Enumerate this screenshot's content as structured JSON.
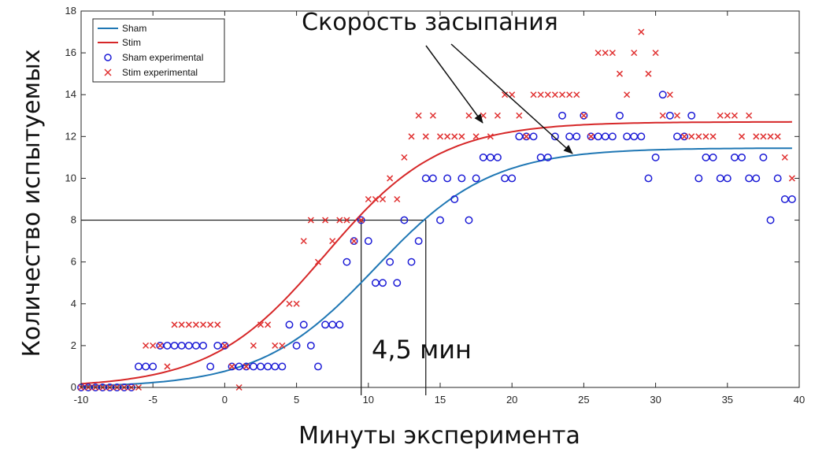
{
  "chart_data": {
    "type": "line",
    "xlabel": "Минуты эксперимента",
    "ylabel": "Количество испытуемых",
    "xlim": [
      -10,
      40
    ],
    "ylim": [
      0,
      18
    ],
    "xticks": [
      -10,
      -5,
      0,
      5,
      10,
      15,
      20,
      25,
      30,
      35,
      40
    ],
    "yticks": [
      0,
      2,
      4,
      6,
      8,
      10,
      12,
      14,
      16,
      18
    ],
    "grid": false,
    "legend_position": "top-left",
    "legend": [
      "Sham",
      "Stim",
      "Sham experimental",
      "Stim experimental"
    ],
    "series": [
      {
        "name": "Sham",
        "kind": "line",
        "color": "#1f77b4",
        "L": 11.45,
        "k": 0.25,
        "x0": 10.5
      },
      {
        "name": "Stim",
        "kind": "line",
        "color": "#d62728",
        "L": 12.7,
        "k": 0.25,
        "x0": 7.0
      },
      {
        "name": "Sham experimental",
        "kind": "scatter",
        "marker": "circle",
        "color": "#1c1cd6",
        "x": [
          -10,
          -9.5,
          -9,
          -8.5,
          -8,
          -7.5,
          -7,
          -6.5,
          -6,
          -5.5,
          -5,
          -4.5,
          -4,
          -3.5,
          -3,
          -2.5,
          -2,
          -1.5,
          -1,
          -0.5,
          0,
          0.5,
          1,
          1.5,
          2,
          2.5,
          3,
          3.5,
          4,
          4.5,
          5,
          5.5,
          6,
          6.5,
          7,
          7.5,
          8,
          8.5,
          9,
          9.5,
          10,
          10.5,
          11,
          11.5,
          12,
          12.5,
          13,
          13.5,
          14,
          14.5,
          15,
          15.5,
          16,
          16.5,
          17,
          17.5,
          18,
          18.5,
          19,
          19.5,
          20,
          20.5,
          21,
          21.5,
          22,
          22.5,
          23,
          23.5,
          24,
          24.5,
          25,
          25.5,
          26,
          26.5,
          27,
          27.5,
          28,
          28.5,
          29,
          29.5,
          30,
          30.5,
          31,
          31.5,
          32,
          32.5,
          33,
          33.5,
          34,
          34.5,
          35,
          35.5,
          36,
          36.5,
          37,
          37.5,
          38,
          38.5,
          39,
          39.5
        ],
        "y": [
          0,
          0,
          0,
          0,
          0,
          0,
          0,
          0,
          1,
          1,
          1,
          2,
          2,
          2,
          2,
          2,
          2,
          2,
          1,
          2,
          2,
          1,
          1,
          1,
          1,
          1,
          1,
          1,
          1,
          3,
          2,
          3,
          2,
          1,
          3,
          3,
          3,
          6,
          7,
          8,
          7,
          5,
          5,
          6,
          5,
          8,
          6,
          7,
          10,
          10,
          8,
          10,
          9,
          10,
          8,
          10,
          11,
          11,
          11,
          10,
          10,
          12,
          12,
          12,
          11,
          11,
          12,
          13,
          12,
          12,
          13,
          12,
          12,
          12,
          12,
          13,
          12,
          12,
          12,
          10,
          11,
          14,
          13,
          12,
          12,
          13,
          10,
          11,
          11,
          10,
          10,
          11,
          11,
          10,
          10,
          11,
          8,
          10,
          9,
          9
        ]
      },
      {
        "name": "Stim experimental",
        "kind": "scatter",
        "marker": "x",
        "color": "#e03030",
        "x": [
          -10,
          -9.5,
          -9,
          -8.5,
          -8,
          -7.5,
          -7,
          -6.5,
          -6,
          -5.5,
          -5,
          -4.5,
          -4,
          -3.5,
          -3,
          -2.5,
          -2,
          -1.5,
          -1,
          -0.5,
          0,
          0.5,
          1,
          1.5,
          2,
          2.5,
          3,
          3.5,
          4,
          4.5,
          5,
          5.5,
          6,
          6.5,
          7,
          7.5,
          8,
          8.5,
          9,
          9.5,
          10,
          10.5,
          11,
          11.5,
          12,
          12.5,
          13,
          13.5,
          14,
          14.5,
          15,
          15.5,
          16,
          16.5,
          17,
          17.5,
          18,
          18.5,
          19,
          19.5,
          20,
          20.5,
          21,
          21.5,
          22,
          22.5,
          23,
          23.5,
          24,
          24.5,
          25,
          25.5,
          26,
          26.5,
          27,
          27.5,
          28,
          28.5,
          29,
          29.5,
          30,
          30.5,
          31,
          31.5,
          32,
          32.5,
          33,
          33.5,
          34,
          34.5,
          35,
          35.5,
          36,
          36.5,
          37,
          37.5,
          38,
          38.5,
          39,
          39.5
        ],
        "y": [
          0,
          0,
          0,
          0,
          0,
          0,
          0,
          0,
          0,
          2,
          2,
          2,
          1,
          3,
          3,
          3,
          3,
          3,
          3,
          3,
          2,
          1,
          0,
          1,
          2,
          3,
          3,
          2,
          2,
          4,
          4,
          7,
          8,
          6,
          8,
          7,
          8,
          8,
          7,
          8,
          9,
          9,
          9,
          10,
          9,
          11,
          12,
          13,
          12,
          13,
          12,
          12,
          12,
          12,
          13,
          12,
          13,
          12,
          13,
          14,
          14,
          13,
          12,
          14,
          14,
          14,
          14,
          14,
          14,
          14,
          13,
          12,
          16,
          16,
          16,
          15,
          14,
          16,
          17,
          15,
          16,
          13,
          14,
          13,
          12,
          12,
          12,
          12,
          12,
          13,
          13,
          13,
          12,
          13,
          12,
          12,
          12,
          12,
          11,
          10
        ]
      }
    ],
    "reference_lines": {
      "y": 8,
      "x_stim": 9.5,
      "x_sham": 14
    },
    "annotations": [
      {
        "text": "Скорость засыпания",
        "arrows_to": [
          "Stim",
          "Sham"
        ]
      },
      {
        "text": "4,5 мин"
      }
    ]
  }
}
